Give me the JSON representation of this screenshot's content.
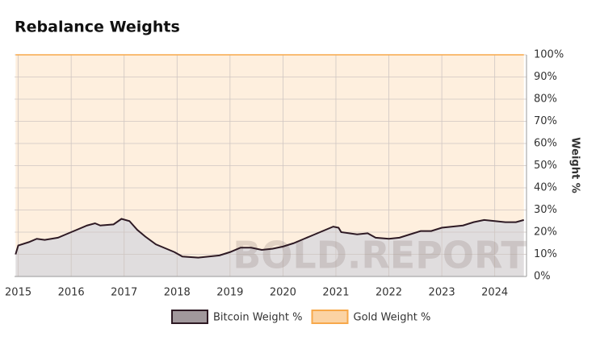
{
  "chart_data": {
    "type": "stacked_area",
    "title": "Rebalance Weights",
    "ylabel": "Weight %",
    "watermark": "BOLD.REPORT",
    "x": [
      2014.95,
      2015.0,
      2015.2,
      2015.35,
      2015.5,
      2015.75,
      2015.9,
      2016.1,
      2016.3,
      2016.45,
      2016.55,
      2016.8,
      2016.95,
      2017.1,
      2017.25,
      2017.4,
      2017.6,
      2017.8,
      2017.95,
      2018.1,
      2018.4,
      2018.6,
      2018.8,
      2019.0,
      2019.2,
      2019.4,
      2019.6,
      2019.8,
      2020.0,
      2020.2,
      2020.4,
      2020.6,
      2020.8,
      2020.95,
      2021.05,
      2021.1,
      2021.4,
      2021.6,
      2021.75,
      2022.0,
      2022.2,
      2022.4,
      2022.6,
      2022.8,
      2023.0,
      2023.2,
      2023.4,
      2023.6,
      2023.8,
      2024.0,
      2024.2,
      2024.4,
      2024.55
    ],
    "series": [
      {
        "name": "Bitcoin Weight %",
        "color": "#2e1a24",
        "values": [
          10,
          14,
          15.5,
          17,
          16.5,
          17.5,
          19,
          21,
          23,
          24,
          23,
          23.5,
          26,
          25,
          21,
          18,
          14.5,
          12.5,
          11,
          9,
          8.5,
          9,
          9.5,
          11,
          13,
          13,
          12,
          12.5,
          13.5,
          15,
          17,
          19,
          21,
          22.5,
          22,
          20,
          19,
          19.5,
          17.5,
          17,
          17.5,
          19,
          20.5,
          20.5,
          22,
          22.5,
          23,
          24.5,
          25.5,
          25,
          24.5,
          24.5,
          25.5
        ]
      },
      {
        "name": "Gold Weight %",
        "color": "#f7a84a",
        "values": [
          90,
          86,
          84.5,
          83,
          83.5,
          82.5,
          81,
          79,
          77,
          76,
          77,
          76.5,
          74,
          75,
          79,
          82,
          85.5,
          87.5,
          89,
          91,
          91.5,
          91,
          90.5,
          89,
          87,
          87,
          88,
          87.5,
          86.5,
          85,
          83,
          81,
          79,
          77.5,
          78,
          80,
          81,
          80.5,
          82.5,
          83,
          82.5,
          81,
          79.5,
          79.5,
          78,
          77.5,
          77,
          75.5,
          74.5,
          75,
          75.5,
          75.5,
          74.5
        ]
      }
    ],
    "xlim": [
      2014.93,
      2024.6
    ],
    "xticks": [
      2015,
      2016,
      2017,
      2018,
      2019,
      2020,
      2021,
      2022,
      2023,
      2024
    ],
    "ylim": [
      0,
      100
    ],
    "yticks": [
      {
        "value": 0,
        "label": "0%"
      },
      {
        "value": 10,
        "label": "10%"
      },
      {
        "value": 20,
        "label": "20%"
      },
      {
        "value": 30,
        "label": "30%"
      },
      {
        "value": 40,
        "label": "40%"
      },
      {
        "value": 50,
        "label": "50%"
      },
      {
        "value": 60,
        "label": "60%"
      },
      {
        "value": 70,
        "label": "70%"
      },
      {
        "value": 80,
        "label": "80%"
      },
      {
        "value": 90,
        "label": "90%"
      },
      {
        "value": 100,
        "label": "100%"
      }
    ],
    "grid": true
  }
}
